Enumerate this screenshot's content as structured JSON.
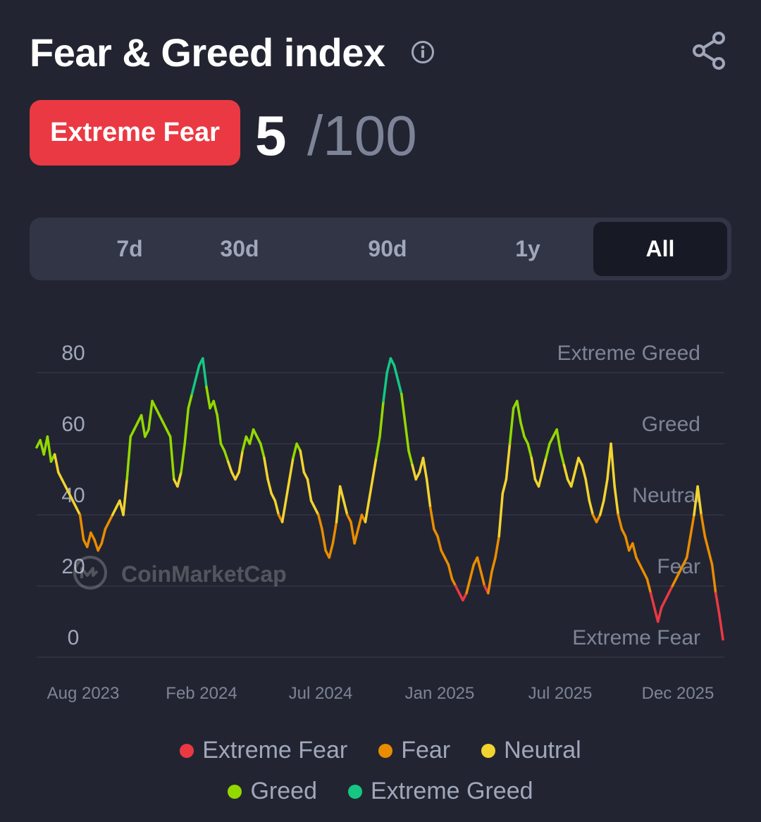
{
  "header": {
    "title": "Fear & Greed index"
  },
  "status": {
    "label": "Extreme Fear",
    "score": "5",
    "max": "/100"
  },
  "tabs": [
    {
      "label": "7d"
    },
    {
      "label": "30d"
    },
    {
      "label": "90d"
    },
    {
      "label": "1y"
    },
    {
      "label": "All",
      "active": true
    }
  ],
  "legend": [
    {
      "label": "Extreme Fear",
      "color": "#ea3943"
    },
    {
      "label": "Fear",
      "color": "#ea8c00"
    },
    {
      "label": "Neutral",
      "color": "#f3d42f"
    },
    {
      "label": "Greed",
      "color": "#93d900"
    },
    {
      "label": "Extreme Greed",
      "color": "#16c784"
    }
  ],
  "watermark": "CoinMarketCap",
  "colors": {
    "background": "#222531",
    "extreme_fear": "#ea3943",
    "fear": "#ea8c00",
    "neutral": "#f3d42f",
    "greed": "#93d900",
    "extreme_greed": "#16c784"
  },
  "icons": [
    "info-icon",
    "share-icon",
    "coinmarketcap-logo-icon"
  ],
  "chart_data": {
    "type": "line",
    "ylim": [
      0,
      100
    ],
    "yticks": [
      0,
      20,
      40,
      60,
      80
    ],
    "zone_labels": [
      "Extreme Greed",
      "Greed",
      "Neutral",
      "Fear",
      "Extreme Fear"
    ],
    "xticks": [
      "Aug 2023",
      "Feb 2024",
      "Jul 2024",
      "Jan 2025",
      "Jul 2025",
      "Dec 2025"
    ],
    "grid": true,
    "legend_placement": "bottom",
    "series": [
      {
        "values": [
          59,
          61,
          57,
          62,
          55,
          57,
          52,
          50,
          48,
          46,
          44,
          42,
          40,
          33,
          31,
          35,
          33,
          30,
          32,
          36,
          38,
          40,
          42,
          44,
          40,
          50,
          62,
          64,
          66,
          68,
          62,
          64,
          72,
          70,
          68,
          66,
          64,
          62,
          50,
          48,
          52,
          60,
          70,
          74,
          78,
          82,
          84,
          76,
          70,
          72,
          68,
          60,
          58,
          55,
          52,
          50,
          52,
          58,
          62,
          60,
          64,
          62,
          60,
          56,
          50,
          46,
          44,
          40,
          38,
          44,
          50,
          56,
          60,
          58,
          52,
          50,
          44,
          42,
          40,
          36,
          30,
          28,
          32,
          38,
          48,
          44,
          40,
          38,
          32,
          36,
          40,
          38,
          44,
          50,
          56,
          62,
          72,
          80,
          84,
          82,
          78,
          74,
          66,
          58,
          54,
          50,
          52,
          56,
          50,
          42,
          36,
          34,
          30,
          28,
          26,
          22,
          20,
          18,
          16,
          18,
          22,
          26,
          28,
          24,
          20,
          18,
          24,
          28,
          34,
          46,
          50,
          60,
          70,
          72,
          66,
          62,
          60,
          56,
          50,
          48,
          52,
          56,
          60,
          62,
          64,
          58,
          54,
          50,
          48,
          52,
          56,
          54,
          50,
          44,
          40,
          38,
          40,
          44,
          50,
          60,
          48,
          40,
          36,
          34,
          30,
          32,
          28,
          26,
          24,
          22,
          18,
          14,
          10,
          14,
          16,
          18,
          20,
          22,
          24,
          26,
          28,
          34,
          40,
          48,
          40,
          34,
          30,
          26,
          18,
          12,
          5
        ]
      }
    ]
  }
}
